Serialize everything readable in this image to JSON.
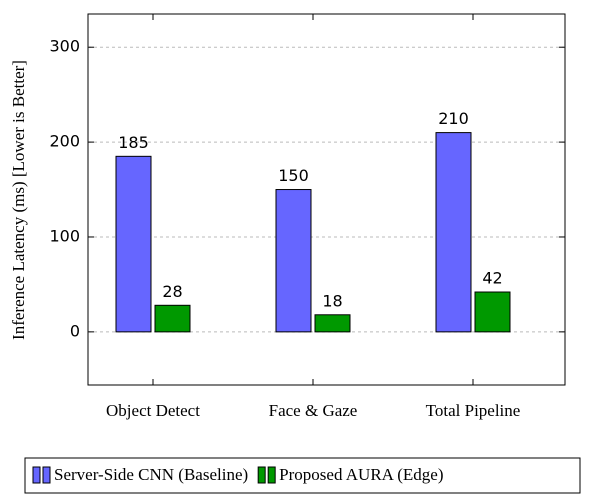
{
  "chart_data": {
    "type": "bar",
    "categories": [
      "Object Detect",
      "Face & Gaze",
      "Total Pipeline"
    ],
    "series": [
      {
        "name": "Server-Side CNN (Baseline)",
        "color": "#6666ff",
        "values": [
          185,
          150,
          210
        ]
      },
      {
        "name": "Proposed AURA (Edge)",
        "color": "#009900",
        "values": [
          28,
          18,
          42
        ]
      }
    ],
    "ylabel": "Inference Latency (ms) [Lower is Better]",
    "ylim": [
      -56,
      335
    ],
    "yticks": [
      0,
      100,
      200,
      300
    ],
    "grid": true,
    "legend": "bottom"
  }
}
